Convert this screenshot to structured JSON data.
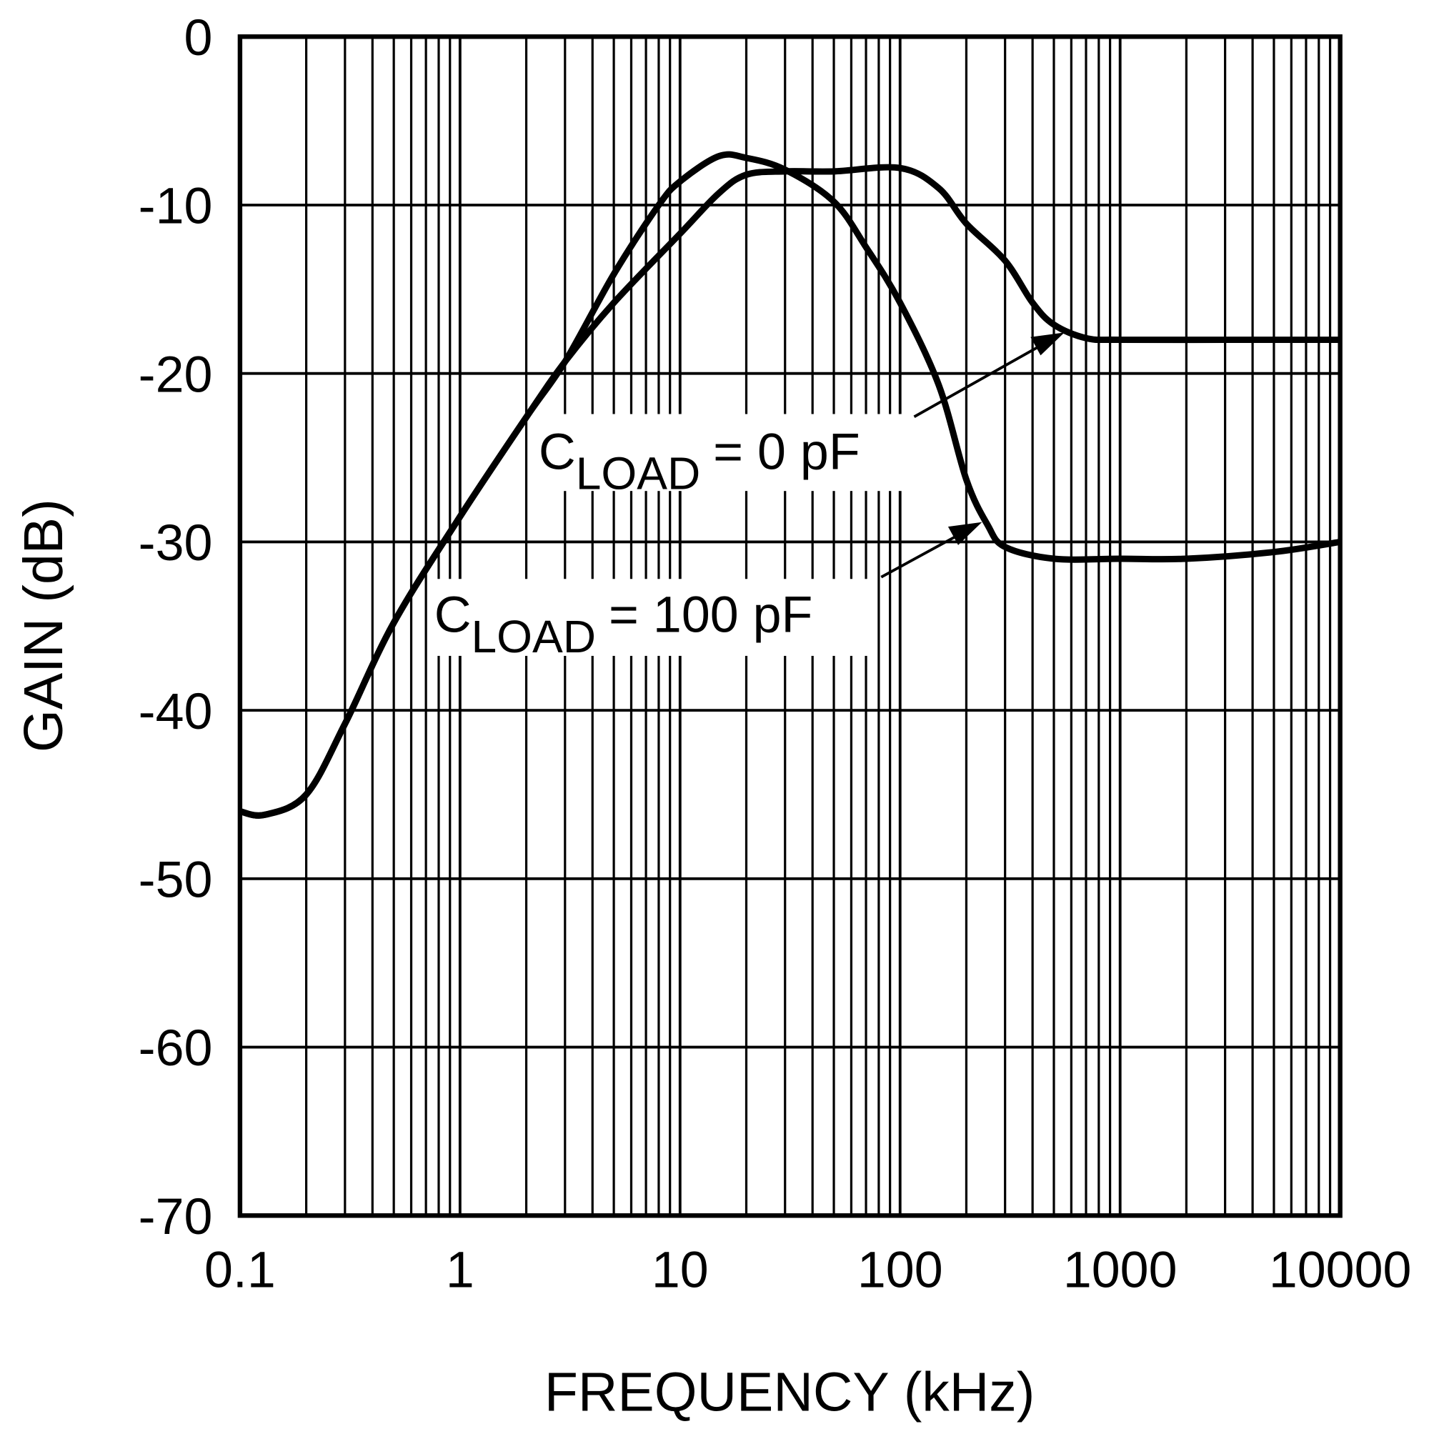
{
  "chart_data": {
    "type": "line",
    "xlabel": "FREQUENCY (kHz)",
    "ylabel": "GAIN (dB)",
    "xscale": "log",
    "xlim": [
      0.1,
      10000
    ],
    "ylim": [
      -70,
      0
    ],
    "grid": true,
    "xticks": [
      "0.1",
      "1",
      "10",
      "100",
      "1000",
      "10000"
    ],
    "yticks": [
      "0",
      "-10",
      "-20",
      "-30",
      "-40",
      "-50",
      "-60",
      "-70"
    ],
    "series": [
      {
        "name": "= 0 pF",
        "label_prefix": "C",
        "label_sub": "LOAD",
        "x": [
          0.1,
          0.13,
          0.2,
          0.3,
          0.5,
          1,
          2,
          3,
          5,
          10,
          15,
          20,
          30,
          50,
          100,
          150,
          200,
          300,
          400,
          500,
          700,
          1000,
          3000,
          10000
        ],
        "y": [
          -46,
          -46.2,
          -45,
          -40.8,
          -34.8,
          -28.5,
          -22.6,
          -19.3,
          -15.8,
          -11.7,
          -9.3,
          -8.2,
          -8,
          -8,
          -7.8,
          -9,
          -11.1,
          -13.3,
          -15.8,
          -17.1,
          -17.9,
          -18,
          -18,
          -18
        ]
      },
      {
        "name": "= 100 pF",
        "label_prefix": "C",
        "label_sub": "LOAD",
        "x": [
          0.1,
          0.13,
          0.2,
          0.3,
          0.5,
          1,
          2,
          3,
          5,
          8,
          10,
          15,
          20,
          30,
          50,
          70,
          100,
          150,
          200,
          250,
          300,
          500,
          1000,
          2000,
          5000,
          10000
        ],
        "y": [
          -46,
          -46.2,
          -45,
          -40.8,
          -34.8,
          -28.5,
          -22.6,
          -19.3,
          -14.1,
          -10,
          -8.6,
          -7.1,
          -7.2,
          -7.9,
          -9.8,
          -12.5,
          -15.8,
          -20.7,
          -26.3,
          -29,
          -30.3,
          -31,
          -31,
          -31,
          -30.6,
          -30
        ]
      }
    ]
  }
}
